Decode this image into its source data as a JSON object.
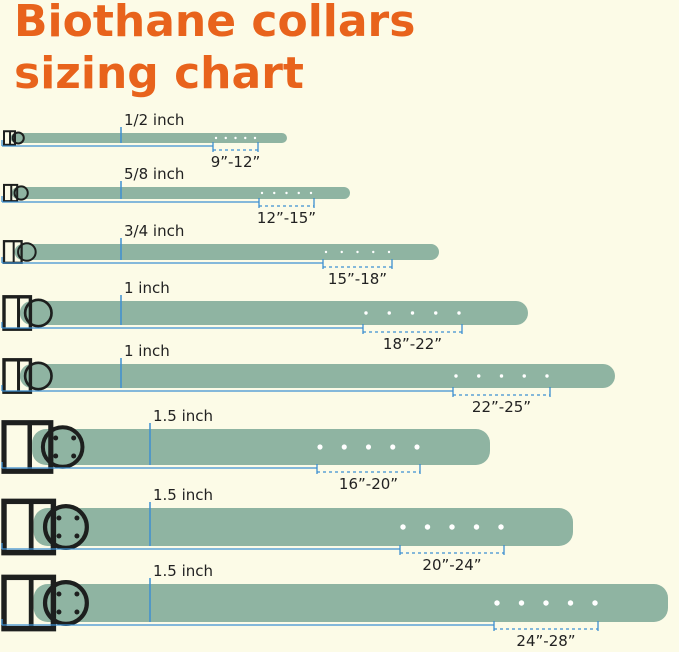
{
  "header": {
    "title_lines": [
      "Biothane collars",
      "sizing chart"
    ]
  },
  "collars": [
    {
      "width": "1/2 inch",
      "range": "9”-12”"
    },
    {
      "width": "5/8 inch",
      "range": "12”-15”"
    },
    {
      "width": "3/4 inch",
      "range": "15”-18”"
    },
    {
      "width": "1 inch",
      "range": "18”-22”"
    },
    {
      "width": "1 inch",
      "range": "22”-25”"
    },
    {
      "width": "1.5 inch",
      "range": "16”-20”"
    },
    {
      "width": "1.5 inch",
      "range": "20”-24”"
    },
    {
      "width": "1.5 inch",
      "range": "24”-28”"
    }
  ]
}
